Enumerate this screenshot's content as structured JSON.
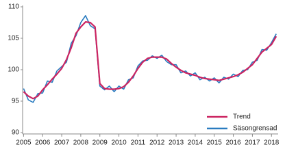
{
  "chart_data": {
    "type": "line",
    "x": [
      2005,
      2005.25,
      2005.5,
      2005.75,
      2006,
      2006.25,
      2006.5,
      2006.75,
      2007,
      2007.25,
      2007.5,
      2007.75,
      2008,
      2008.25,
      2008.5,
      2008.75,
      2009,
      2009.25,
      2009.5,
      2009.75,
      2010,
      2010.25,
      2010.5,
      2010.75,
      2011,
      2011.25,
      2011.5,
      2011.75,
      2012,
      2012.25,
      2012.5,
      2012.75,
      2013,
      2013.25,
      2013.5,
      2013.75,
      2014,
      2014.25,
      2014.5,
      2014.75,
      2015,
      2015.25,
      2015.5,
      2015.75,
      2016,
      2016.25,
      2016.5,
      2016.75,
      2017,
      2017.25,
      2017.5,
      2017.75,
      2018,
      2018.25
    ],
    "series": [
      {
        "name": "Trend",
        "color": "#cc2461",
        "values": [
          96.5,
          95.8,
          95.4,
          95.8,
          96.8,
          97.6,
          98.5,
          99.3,
          100.2,
          101.6,
          103.5,
          105.8,
          106.8,
          107.6,
          107.5,
          106.8,
          97.8,
          97.0,
          96.9,
          96.9,
          97.0,
          97.3,
          98.0,
          99.0,
          100.2,
          101.2,
          101.8,
          102.0,
          102.0,
          102.0,
          101.7,
          101.0,
          100.4,
          99.9,
          99.5,
          99.3,
          99.1,
          98.8,
          98.6,
          98.5,
          98.4,
          98.3,
          98.5,
          98.7,
          98.9,
          99.2,
          99.6,
          100.2,
          100.8,
          101.8,
          102.8,
          103.4,
          104.0,
          105.3
        ]
      },
      {
        "name": "Säsongrensad",
        "color": "#2a7cc0",
        "values": [
          97.0,
          95.2,
          94.8,
          96.2,
          96.3,
          98.2,
          98.0,
          99.8,
          100.5,
          101.2,
          104.2,
          105.4,
          107.5,
          108.6,
          107.0,
          106.5,
          97.4,
          96.8,
          97.4,
          96.5,
          97.4,
          96.9,
          98.4,
          98.7,
          100.6,
          101.4,
          101.5,
          102.2,
          101.8,
          102.3,
          101.3,
          100.8,
          100.8,
          99.5,
          99.8,
          99.0,
          99.5,
          98.4,
          98.8,
          98.2,
          98.7,
          97.9,
          98.8,
          98.5,
          99.3,
          98.9,
          99.9,
          100.0,
          101.2,
          101.5,
          103.2,
          103.1,
          104.3,
          105.7
        ]
      }
    ],
    "xlim": [
      2004.95,
      2018.35
    ],
    "xticks": [
      2005,
      2006,
      2007,
      2008,
      2009,
      2010,
      2011,
      2012,
      2013,
      2014,
      2015,
      2016,
      2017,
      2018
    ],
    "ylim": [
      90,
      110
    ],
    "yticks": [
      90,
      95,
      100,
      105,
      110
    ],
    "legend": "bottom-right"
  }
}
